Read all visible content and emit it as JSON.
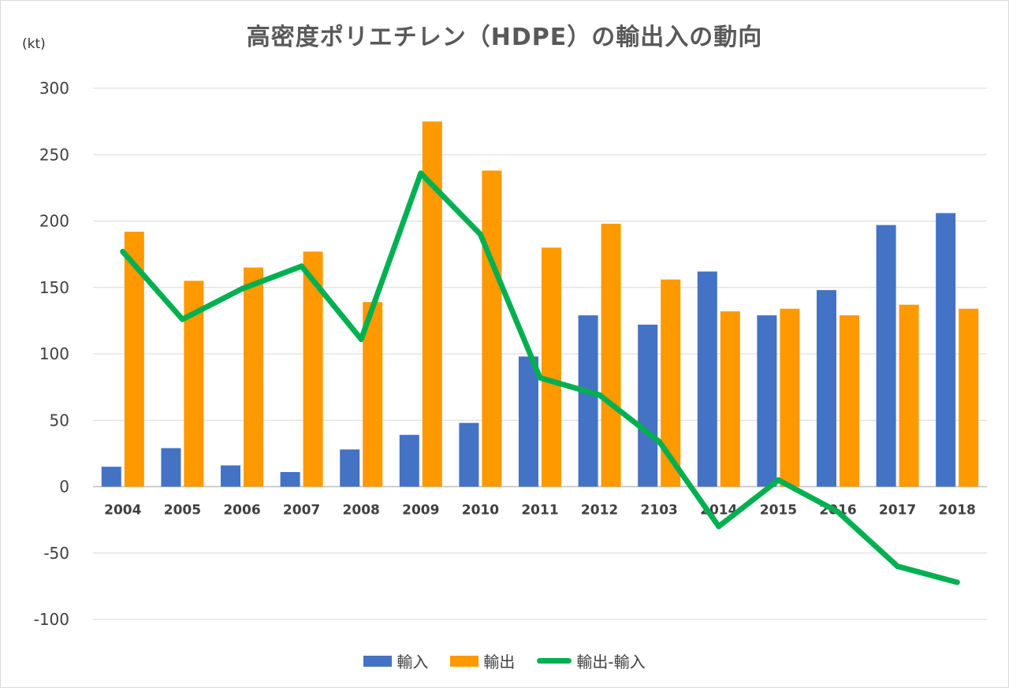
{
  "chart_data": {
    "type": "bar",
    "title": "高密度ポリエチレン（HDPE）の輸出入の動向",
    "unit_label": "(kt)",
    "categories": [
      "2004",
      "2005",
      "2006",
      "2007",
      "2008",
      "2009",
      "2010",
      "2011",
      "2012",
      "2103",
      "2014",
      "2015",
      "2016",
      "2017",
      "2018"
    ],
    "ylim": [
      -100,
      300
    ],
    "yticks": [
      300,
      250,
      200,
      150,
      100,
      50,
      0,
      -50,
      -100
    ],
    "grid": true,
    "legend_position": "bottom",
    "series": [
      {
        "name": "輸入",
        "kind": "bar",
        "color": "#4472C4",
        "values": [
          15,
          29,
          16,
          11,
          28,
          39,
          48,
          98,
          129,
          122,
          162,
          129,
          148,
          197,
          206
        ]
      },
      {
        "name": "輸出",
        "kind": "bar",
        "color": "#FF9900",
        "values": [
          192,
          155,
          165,
          177,
          139,
          275,
          238,
          180,
          198,
          156,
          132,
          134,
          129,
          137,
          134
        ]
      },
      {
        "name": "輸出-輸入",
        "kind": "line",
        "color": "#00B050",
        "values": [
          177,
          126,
          149,
          166,
          111,
          236,
          190,
          82,
          69,
          34,
          -30,
          5,
          -19,
          -60,
          -72
        ]
      }
    ]
  }
}
